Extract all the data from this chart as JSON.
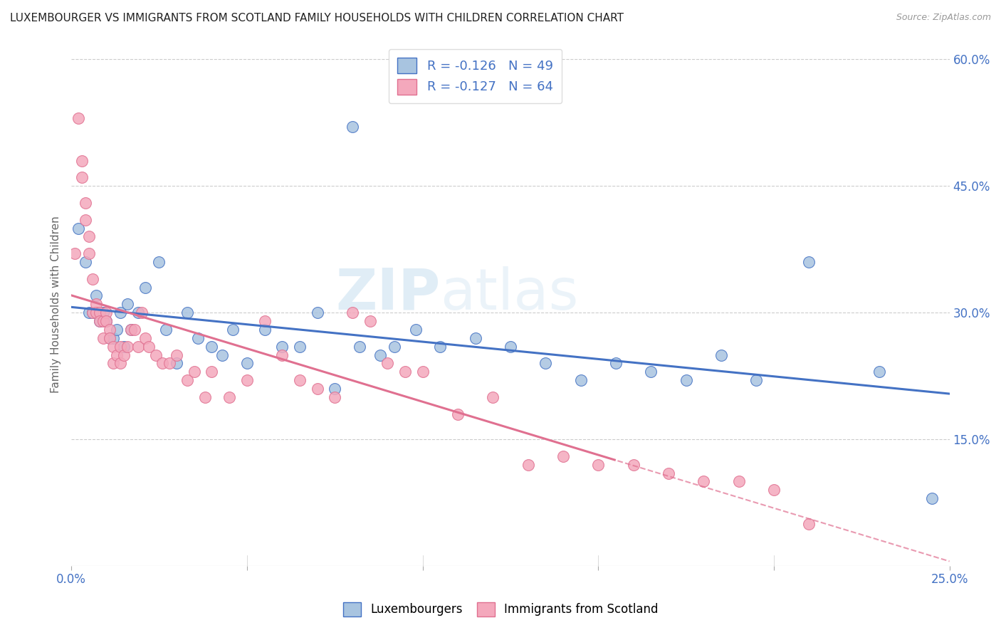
{
  "title": "LUXEMBOURGER VS IMMIGRANTS FROM SCOTLAND FAMILY HOUSEHOLDS WITH CHILDREN CORRELATION CHART",
  "source": "Source: ZipAtlas.com",
  "ylabel": "Family Households with Children",
  "xlim": [
    0.0,
    0.25
  ],
  "ylim": [
    0.0,
    0.62
  ],
  "xticks": [
    0.0,
    0.05,
    0.1,
    0.15,
    0.2,
    0.25
  ],
  "xticklabels": [
    "0.0%",
    "",
    "",
    "",
    "",
    "25.0%"
  ],
  "yticks_right": [
    0.15,
    0.3,
    0.45,
    0.6
  ],
  "ytick_right_labels": [
    "15.0%",
    "30.0%",
    "45.0%",
    "60.0%"
  ],
  "legend_r1": "-0.126",
  "legend_n1": "49",
  "legend_r2": "-0.127",
  "legend_n2": "64",
  "color_blue": "#a8c4e0",
  "color_pink": "#f4a8bc",
  "color_blue_text": "#4472c4",
  "color_line_blue": "#4472c4",
  "color_line_pink": "#e07090",
  "watermark_zip": "ZIP",
  "watermark_atlas": "atlas",
  "blue_scatter_x": [
    0.002,
    0.004,
    0.005,
    0.006,
    0.007,
    0.008,
    0.009,
    0.01,
    0.011,
    0.012,
    0.013,
    0.014,
    0.015,
    0.016,
    0.017,
    0.019,
    0.021,
    0.025,
    0.027,
    0.03,
    0.033,
    0.036,
    0.04,
    0.043,
    0.046,
    0.05,
    0.055,
    0.06,
    0.065,
    0.07,
    0.075,
    0.08,
    0.082,
    0.088,
    0.092,
    0.098,
    0.105,
    0.115,
    0.125,
    0.135,
    0.145,
    0.155,
    0.165,
    0.175,
    0.185,
    0.195,
    0.21,
    0.23,
    0.245
  ],
  "blue_scatter_y": [
    0.4,
    0.36,
    0.3,
    0.3,
    0.32,
    0.29,
    0.3,
    0.29,
    0.27,
    0.27,
    0.28,
    0.3,
    0.26,
    0.31,
    0.28,
    0.3,
    0.33,
    0.36,
    0.28,
    0.24,
    0.3,
    0.27,
    0.26,
    0.25,
    0.28,
    0.24,
    0.28,
    0.26,
    0.26,
    0.3,
    0.21,
    0.52,
    0.26,
    0.25,
    0.26,
    0.28,
    0.26,
    0.27,
    0.26,
    0.24,
    0.22,
    0.24,
    0.23,
    0.22,
    0.25,
    0.22,
    0.36,
    0.23,
    0.08
  ],
  "pink_scatter_x": [
    0.001,
    0.002,
    0.003,
    0.003,
    0.004,
    0.004,
    0.005,
    0.005,
    0.006,
    0.006,
    0.007,
    0.007,
    0.008,
    0.008,
    0.009,
    0.009,
    0.01,
    0.01,
    0.011,
    0.011,
    0.012,
    0.012,
    0.013,
    0.014,
    0.014,
    0.015,
    0.016,
    0.017,
    0.018,
    0.019,
    0.02,
    0.021,
    0.022,
    0.024,
    0.026,
    0.028,
    0.03,
    0.033,
    0.035,
    0.038,
    0.04,
    0.045,
    0.05,
    0.055,
    0.06,
    0.065,
    0.07,
    0.075,
    0.08,
    0.085,
    0.09,
    0.095,
    0.1,
    0.11,
    0.12,
    0.13,
    0.14,
    0.15,
    0.16,
    0.17,
    0.18,
    0.19,
    0.2,
    0.21
  ],
  "pink_scatter_y": [
    0.37,
    0.53,
    0.48,
    0.46,
    0.43,
    0.41,
    0.37,
    0.39,
    0.3,
    0.34,
    0.31,
    0.3,
    0.3,
    0.29,
    0.29,
    0.27,
    0.3,
    0.29,
    0.28,
    0.27,
    0.26,
    0.24,
    0.25,
    0.26,
    0.24,
    0.25,
    0.26,
    0.28,
    0.28,
    0.26,
    0.3,
    0.27,
    0.26,
    0.25,
    0.24,
    0.24,
    0.25,
    0.22,
    0.23,
    0.2,
    0.23,
    0.2,
    0.22,
    0.29,
    0.25,
    0.22,
    0.21,
    0.2,
    0.3,
    0.29,
    0.24,
    0.23,
    0.23,
    0.18,
    0.2,
    0.12,
    0.13,
    0.12,
    0.12,
    0.11,
    0.1,
    0.1,
    0.09,
    0.05
  ],
  "pink_trend_solid_end": 0.155,
  "blue_trend_line_start": 0.0,
  "blue_trend_line_end": 0.25,
  "pink_trend_line_start": 0.0,
  "pink_trend_line_end": 0.25
}
